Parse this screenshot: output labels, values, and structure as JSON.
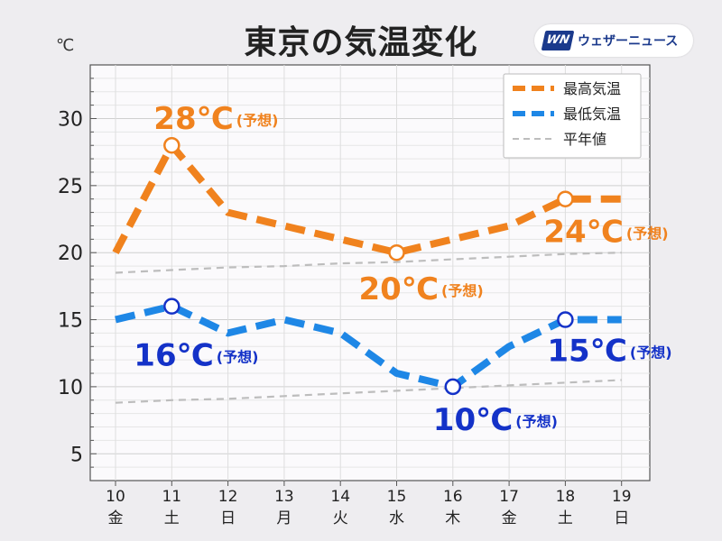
{
  "header": {
    "title": "東京の気温変化",
    "unit": "℃",
    "brand_mark": "WN",
    "brand_name": "ウェザーニュース"
  },
  "colors": {
    "high": "#f0821e",
    "low": "#1e87e6",
    "normal": "#bdbdbd",
    "annot_low": "#1432c8",
    "weekday": "#222222",
    "saturday": "#2b8ad6",
    "sunday": "#d93b3b"
  },
  "chart_data": {
    "type": "line",
    "title": "東京の気温変化",
    "ylabel": "℃",
    "ylim": [
      3,
      34
    ],
    "yticks": [
      5,
      10,
      15,
      20,
      25,
      30
    ],
    "grid": true,
    "legend_position": "top-right",
    "x": [
      "10",
      "11",
      "12",
      "13",
      "14",
      "15",
      "16",
      "17",
      "18",
      "19"
    ],
    "weekdays": [
      "金",
      "土",
      "日",
      "月",
      "火",
      "水",
      "木",
      "金",
      "土",
      "日"
    ],
    "day_kind": [
      "weekday",
      "saturday",
      "sunday",
      "weekday",
      "weekday",
      "weekday",
      "weekday",
      "weekday",
      "saturday",
      "sunday"
    ],
    "series": [
      {
        "name": "最高気温",
        "values": [
          20,
          28,
          23,
          22,
          21,
          20,
          21,
          22,
          24,
          24
        ]
      },
      {
        "name": "最低気温",
        "values": [
          15,
          16,
          14,
          15,
          14,
          11,
          10,
          13,
          15,
          15
        ]
      },
      {
        "name": "平年値",
        "values": [
          18.5,
          18.7,
          18.9,
          19.0,
          19.2,
          19.3,
          19.5,
          19.7,
          19.9,
          20.0
        ]
      },
      {
        "name": "平年値",
        "values": [
          8.8,
          9.0,
          9.1,
          9.3,
          9.5,
          9.7,
          9.9,
          10.1,
          10.3,
          10.5
        ]
      }
    ],
    "annotations": [
      {
        "series": 0,
        "index": 1,
        "value": "28℃",
        "note": "(予想)"
      },
      {
        "series": 0,
        "index": 5,
        "value": "20℃",
        "note": "(予想)"
      },
      {
        "series": 0,
        "index": 8,
        "value": "24℃",
        "note": "(予想)"
      },
      {
        "series": 1,
        "index": 1,
        "value": "16℃",
        "note": "(予想)"
      },
      {
        "series": 1,
        "index": 6,
        "value": "10℃",
        "note": "(予想)"
      },
      {
        "series": 1,
        "index": 8,
        "value": "15℃",
        "note": "(予想)"
      }
    ]
  }
}
